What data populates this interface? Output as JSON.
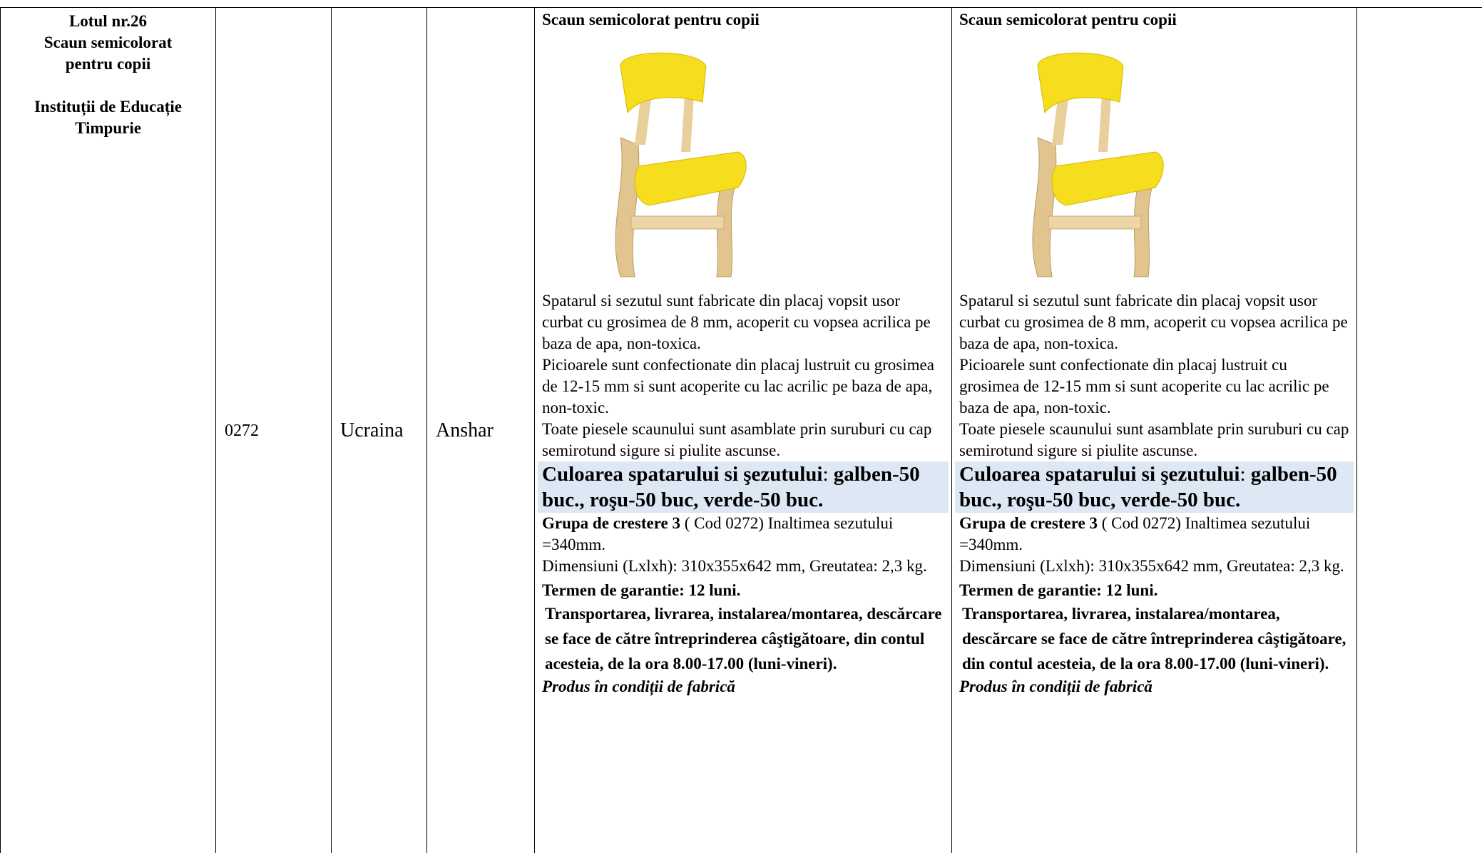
{
  "table": {
    "rows": [
      {
        "lot": "Lotul nr.26",
        "lot_name": "Scaun semicolorat pentru copii",
        "institution": "Instituții de Educație Timpurie",
        "code": "0272",
        "country": "Ucraina",
        "producer": "Anshar",
        "descriptions": [
          {
            "title": "Scaun semicolorat pentru copii",
            "paragraphs": [
              "Spatarul si sezutul sunt fabricate din placaj vopsit usor curbat  cu grosimea de 8 mm, acoperit cu vopsea acrilica  pe baza de apa, non-toxica.",
              "Picioarele sunt confectionate din placaj lustruit cu grosimea de  12-15 mm si sunt acoperite cu lac acrilic pe baza de apa, non-toxic.",
              "Toate piesele scaunului sunt asamblate prin suruburi cu cap semirotund sigure si piulite ascunse."
            ],
            "color_label": "Culoarea spatarului si şezutului",
            "color_sep": ":",
            "color_value": "galben-50 buc., roşu-50 buc, verde-50 buc.",
            "group_label": "Grupa de crestere 3",
            "group_text": "( Cod 0272)  Inaltimea sezutului =340mm.",
            "dimensions": "Dimensiuni (Lxlxh): 310x355x642 mm, Greutatea: 2,3 kg.",
            "warranty": "Termen de garantie: 12 luni.",
            "transport": "Transportarea, livrarea, instalarea/montarea, descărcare  se face de către întreprinderea câştigătoare,   din     contul acesteia, de la ora 8.00-17.00 (luni-vineri).",
            "origin": "Produs în condiții de fabrică"
          },
          {
            "title": "Scaun semicolorat pentru copii",
            "paragraphs": [
              "Spatarul si sezutul sunt fabricate din placaj vopsit usor curbat  cu grosimea de 8 mm, acoperit cu vopsea acrilica  pe baza de apa, non-toxica.",
              "Picioarele sunt confectionate din placaj lustruit cu grosimea de  12-15 mm si sunt acoperite cu lac acrilic pe baza de apa, non-toxic.",
              "Toate piesele scaunului sunt asamblate prin suruburi cu cap semirotund sigure si piulite ascunse."
            ],
            "color_label": "Culoarea spatarului si şezutului",
            "color_sep": ":",
            "color_value": "galben-50 buc., roşu-50 buc, verde-50 buc.",
            "group_label": "Grupa de crestere 3",
            "group_text": "( Cod 0272)  Inaltimea sezutului =340mm.",
            "dimensions": "Dimensiuni (Lxlxh): 310x355x642 mm, Greutatea: 2,3 kg.",
            "warranty": "Termen de garantie: 12 luni.",
            "transport": "Transportarea, livrarea, instalarea/montarea, descărcare  se face de către întreprinderea câştigătoare,   din     contul acesteia, de la ora 8.00-17.00 (luni-vineri).",
            "origin": "Produs în condiții de fabrică"
          }
        ]
      }
    ]
  }
}
